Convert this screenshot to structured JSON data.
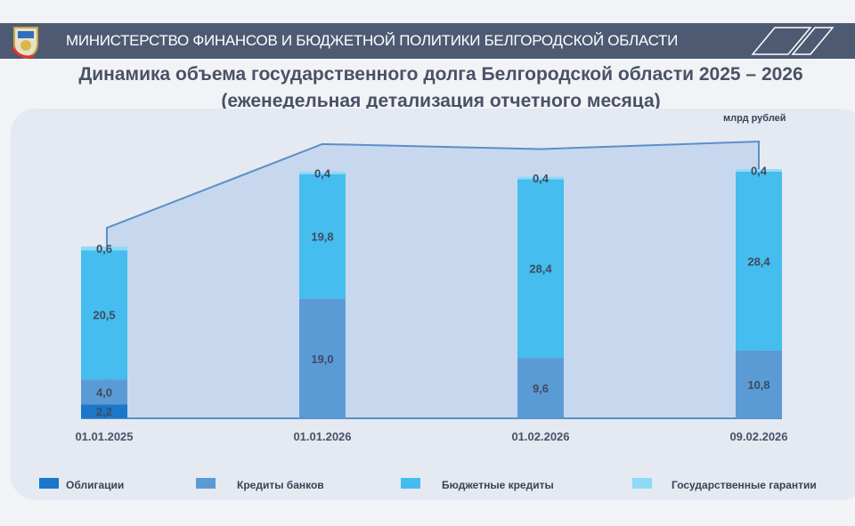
{
  "header": {
    "ministry": "МИНИСТЕРСТВО ФИНАНСОВ И БЮДЖЕТНОЙ ПОЛИТИКИ БЕЛГОРОДСКОЙ ОБЛАСТИ"
  },
  "chart_data": {
    "type": "bar",
    "stacked": true,
    "title": "Динамика объема государственного долга Белгородской области 2025 – 2026",
    "subtitle": "(еженедельная детализация отчетного месяца)",
    "unit": "млрд рублей",
    "categories": [
      "01.01.2025",
      "01.01.2026",
      "01.02.2026",
      "09.02.2026"
    ],
    "legend_position": "bottom",
    "grid": false,
    "series": [
      {
        "name": "Облигации",
        "color": "#1a77c9",
        "values": [
          2.2,
          0,
          0,
          0
        ],
        "labels": [
          "2,2",
          "",
          "",
          ""
        ]
      },
      {
        "name": "Кредиты банков",
        "color": "#5b9bd5",
        "values": [
          4.0,
          19.0,
          9.6,
          10.8
        ],
        "labels": [
          "4,0",
          "19,0",
          "9,6",
          "10,8"
        ]
      },
      {
        "name": "Бюджетные кредиты",
        "color": "#45bdee",
        "values": [
          20.5,
          19.8,
          28.4,
          28.4
        ],
        "labels": [
          "20,5",
          "19,8",
          "28,4",
          "28,4"
        ]
      },
      {
        "name": "Государственные гарантии",
        "color": "#8fdaf7",
        "values": [
          0.6,
          0.4,
          0.4,
          0.4
        ],
        "labels": [
          "0,6",
          "0,4",
          "0,4",
          "0,4"
        ]
      }
    ]
  }
}
